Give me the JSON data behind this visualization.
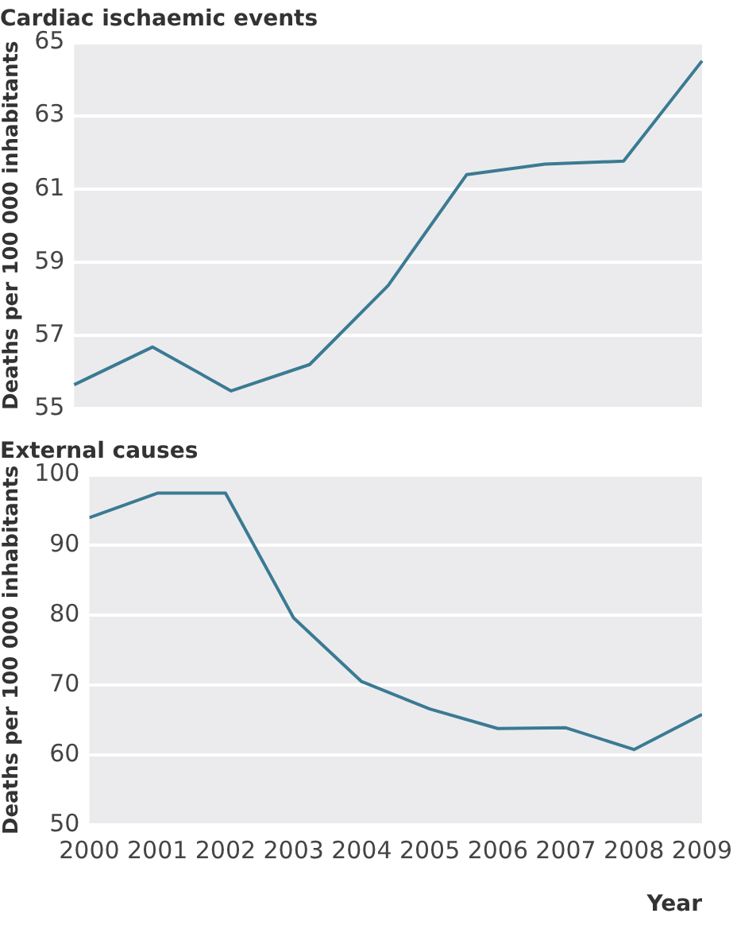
{
  "chart_data": [
    {
      "type": "line",
      "title": "Cardiac ischaemic events",
      "ylabel": "Deaths per 100 000 inhabitants",
      "categories": [
        null,
        null,
        null,
        null,
        null,
        null,
        null,
        null,
        null
      ],
      "color": "#3b7a93",
      "values": [
        55.65,
        56.68,
        55.48,
        56.2,
        58.36,
        61.39,
        61.68,
        61.76,
        64.5
      ],
      "ylim": [
        55,
        65
      ],
      "yticks": [
        55,
        57,
        59,
        61,
        63,
        65
      ],
      "grid": "y",
      "tick_labels": "y"
    },
    {
      "type": "line",
      "title": "External causes",
      "ylabel": "Deaths per 100 000 inhabitants",
      "xlabel": "Year",
      "color": "#3b7a93",
      "x": [
        2000,
        2001,
        2002,
        2003,
        2004,
        2005,
        2006,
        2007,
        2008,
        2009
      ],
      "values": [
        93.9,
        97.4,
        97.4,
        79.6,
        70.5,
        66.6,
        63.8,
        63.9,
        60.8,
        65.8
      ],
      "xlim": [
        2000,
        2009
      ],
      "xticks": [
        2000,
        2001,
        2002,
        2003,
        2004,
        2005,
        2006,
        2007,
        2008,
        2009
      ],
      "ylim": [
        50,
        100
      ],
      "yticks": [
        50,
        60,
        70,
        80,
        90,
        100
      ],
      "grid": "y"
    }
  ]
}
